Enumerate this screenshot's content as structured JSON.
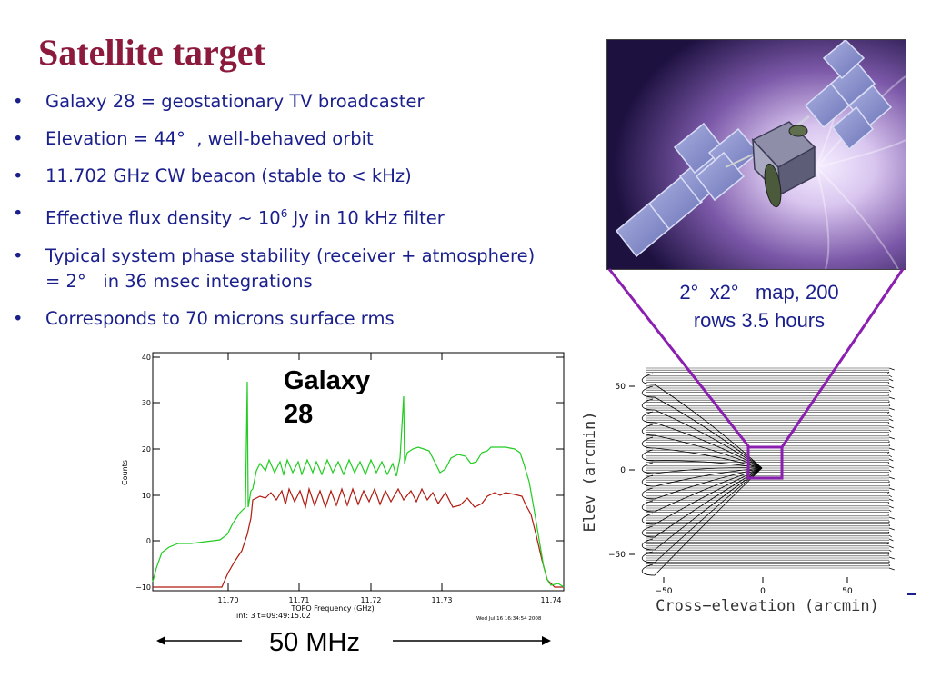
{
  "slide": {
    "title": "Satellite target",
    "bullets": [
      {
        "text": "Galaxy 28 = geostationary TV broadcaster"
      },
      {
        "text": "Elevation = 44°  , well-behaved orbit"
      },
      {
        "text": "11.702 GHz CW beacon (stable to < kHz)"
      },
      {
        "pre": "Effective flux density ~ 10",
        "sup": "6",
        "post": " Jy in 10 kHz filter"
      },
      {
        "text": "Typical system phase stability (receiver + atmosphere) = 2°   in 36 msec integrations"
      },
      {
        "text": "Corresponds to 70 microns surface rms"
      }
    ],
    "bullet_symbol": "•",
    "map_caption": [
      "2°  x2°   map, 200",
      "rows 3.5 hours"
    ],
    "galaxy_label": [
      "Galaxy",
      "28"
    ],
    "bandwidth_label": "50 MHz",
    "image_icon": "satellite-photo"
  },
  "colors": {
    "title": "#8b1a3c",
    "body_text": "#1a1f8c",
    "connector": "#8a1fb0",
    "spectrum_green": "#22cc22",
    "spectrum_red": "#b01a10"
  },
  "spectrum": {
    "ylabel": "Counts",
    "xlabel": "TOPO Frequency (GHz)",
    "y_ticks": [
      "40",
      "30",
      "20",
      "10",
      "0",
      "−10"
    ],
    "x_ticks": [
      "11.70",
      "11.71",
      "11.72",
      "11.73",
      "11.74"
    ],
    "footer_left": "int:   3 t=09:49:15.02",
    "footer_right": "Wed Jul 16 16:34:54 2008"
  },
  "raster_map": {
    "ylabel": "Elev  (arcmin)",
    "xlabel": "Cross−elevation  (arcmin)",
    "y_ticks": [
      "50",
      "0",
      "−50"
    ],
    "x_ticks": [
      "−50",
      "0",
      "50"
    ]
  }
}
